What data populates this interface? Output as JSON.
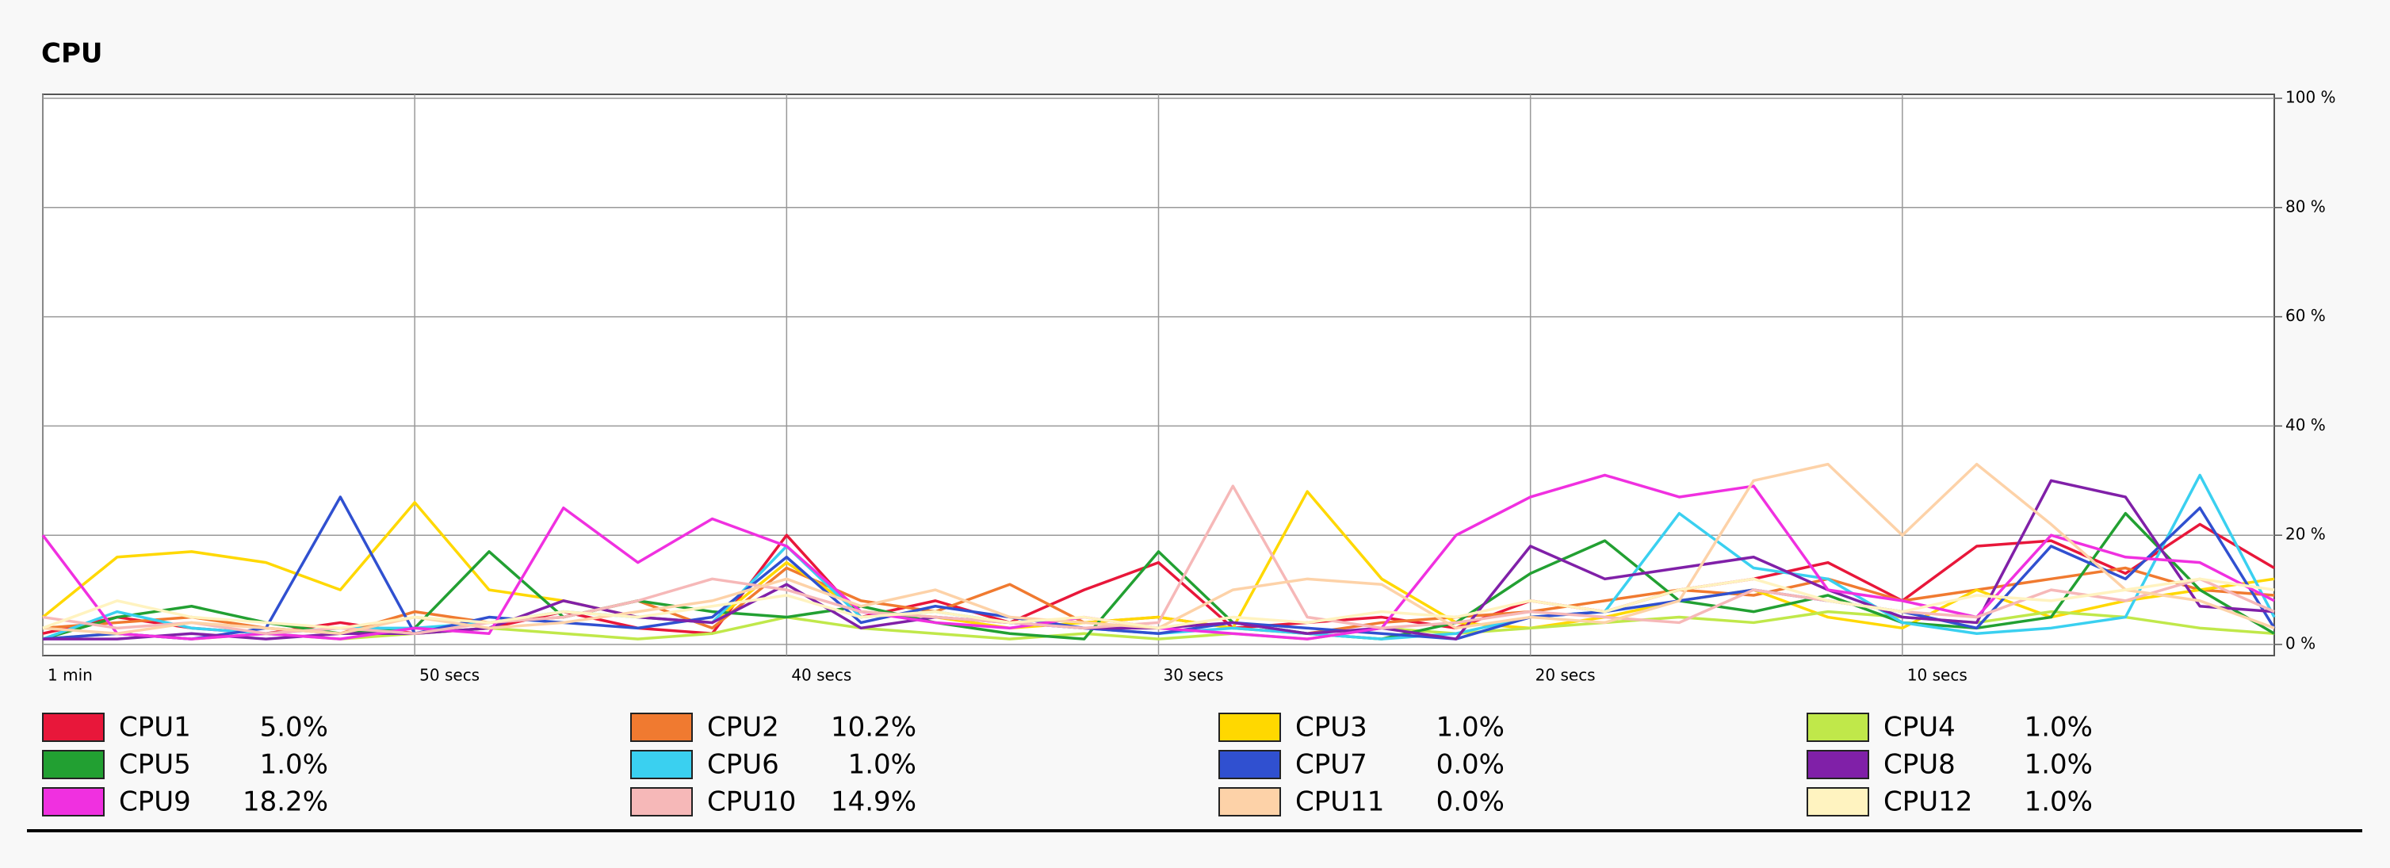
{
  "chart_data": {
    "type": "line",
    "title": "CPU",
    "x": [
      60,
      58,
      56,
      54,
      52,
      50,
      48,
      46,
      44,
      42,
      40,
      38,
      36,
      34,
      32,
      30,
      28,
      26,
      24,
      22,
      20,
      18,
      16,
      14,
      12,
      10,
      8,
      6,
      4,
      2,
      0
    ],
    "xlim": [
      60,
      0
    ],
    "xticks": [
      {
        "value": 60,
        "label": "1 min"
      },
      {
        "value": 50,
        "label": "50 secs"
      },
      {
        "value": 40,
        "label": "40 secs"
      },
      {
        "value": 30,
        "label": "30 secs"
      },
      {
        "value": 20,
        "label": "20 secs"
      },
      {
        "value": 10,
        "label": "10 secs"
      }
    ],
    "ylim": [
      0,
      100
    ],
    "yticks": [
      {
        "value": 100,
        "label": "100 %"
      },
      {
        "value": 80,
        "label": "80 %"
      },
      {
        "value": 60,
        "label": "60 %"
      },
      {
        "value": 40,
        "label": "40 %"
      },
      {
        "value": 20,
        "label": "20 %"
      },
      {
        "value": 0,
        "label": "0 %"
      }
    ],
    "grid": true,
    "series": [
      {
        "name": "CPU1",
        "color": "#e8173a",
        "current": {
          "value": 5.0,
          "label": "5.0%"
        },
        "values": [
          2,
          5,
          3,
          2,
          4,
          2,
          3,
          6,
          3,
          2,
          20,
          5,
          8,
          4,
          10,
          15,
          3,
          4,
          5,
          3,
          8,
          6,
          10,
          12,
          15,
          8,
          18,
          19,
          13,
          22,
          14
        ]
      },
      {
        "name": "CPU2",
        "color": "#f07a30",
        "current": {
          "value": 10.2,
          "label": "10.2%"
        },
        "values": [
          3,
          4,
          5,
          3,
          2,
          6,
          4,
          5,
          8,
          3,
          14,
          8,
          6,
          11,
          4,
          5,
          3,
          2,
          4,
          5,
          6,
          8,
          10,
          9,
          12,
          8,
          10,
          12,
          14,
          10,
          9
        ]
      },
      {
        "name": "CPU3",
        "color": "#ffd800",
        "current": {
          "value": 1.0,
          "label": "1.0%"
        },
        "values": [
          5,
          16,
          17,
          15,
          10,
          26,
          10,
          8,
          5,
          4,
          15,
          6,
          5,
          3,
          4,
          5,
          3,
          28,
          12,
          4,
          3,
          5,
          8,
          10,
          5,
          3,
          10,
          5,
          8,
          10,
          12
        ]
      },
      {
        "name": "CPU4",
        "color": "#c0e84a",
        "current": {
          "value": 1.0,
          "label": "1.0%"
        },
        "values": [
          1,
          2,
          1,
          2,
          1,
          2,
          3,
          2,
          1,
          2,
          5,
          3,
          2,
          1,
          2,
          1,
          2,
          1,
          3,
          2,
          3,
          4,
          5,
          4,
          6,
          5,
          4,
          6,
          5,
          3,
          2
        ]
      },
      {
        "name": "CPU5",
        "color": "#22a032",
        "current": {
          "value": 1.0,
          "label": "1.0%"
        },
        "values": [
          1,
          5,
          7,
          4,
          2,
          3,
          17,
          5,
          8,
          6,
          5,
          7,
          4,
          2,
          1,
          17,
          4,
          2,
          1,
          4,
          13,
          19,
          8,
          6,
          9,
          4,
          3,
          5,
          24,
          10,
          2
        ]
      },
      {
        "name": "CPU6",
        "color": "#3ad0f0",
        "current": {
          "value": 1.0,
          "label": "1.0%"
        },
        "values": [
          1,
          6,
          3,
          2,
          3,
          3,
          4,
          6,
          5,
          4,
          18,
          5,
          6,
          4,
          3,
          2,
          3,
          2,
          1,
          2,
          5,
          6,
          24,
          14,
          12,
          4,
          2,
          3,
          5,
          31,
          5
        ]
      },
      {
        "name": "CPU7",
        "color": "#3050d0",
        "current": {
          "value": 0.0,
          "label": "0.0%"
        },
        "values": [
          1,
          2,
          1,
          3,
          27,
          2,
          5,
          4,
          3,
          5,
          16,
          4,
          7,
          5,
          3,
          2,
          4,
          3,
          2,
          1,
          5,
          6,
          8,
          10,
          8,
          6,
          3,
          18,
          12,
          25,
          3
        ]
      },
      {
        "name": "CPU8",
        "color": "#8020a8",
        "current": {
          "value": 1.0,
          "label": "1.0%"
        },
        "values": [
          1,
          1,
          2,
          1,
          2,
          2,
          3,
          8,
          5,
          4,
          11,
          3,
          5,
          4,
          3,
          3,
          4,
          2,
          3,
          1,
          18,
          12,
          14,
          16,
          10,
          5,
          4,
          30,
          27,
          7,
          6
        ]
      },
      {
        "name": "CPU9",
        "color": "#f030e0",
        "current": {
          "value": 18.2,
          "label": "18.2%"
        },
        "values": [
          20,
          2,
          1,
          2,
          1,
          3,
          2,
          25,
          15,
          23,
          18,
          6,
          4,
          3,
          5,
          3,
          2,
          1,
          3,
          20,
          27,
          31,
          27,
          29,
          10,
          8,
          5,
          20,
          16,
          15,
          8
        ]
      },
      {
        "name": "CPU10",
        "color": "#f6b8b8",
        "current": {
          "value": 14.9,
          "label": "14.9%"
        },
        "values": [
          5,
          3,
          4,
          2,
          3,
          2,
          4,
          5,
          8,
          12,
          10,
          6,
          5,
          4,
          3,
          4,
          29,
          5,
          3,
          4,
          6,
          5,
          4,
          10,
          8,
          6,
          5,
          10,
          8,
          12,
          6
        ]
      },
      {
        "name": "CPU11",
        "color": "#fdd2a8",
        "current": {
          "value": 0.0,
          "label": "0.0%"
        },
        "values": [
          3,
          2,
          4,
          3,
          2,
          5,
          3,
          4,
          6,
          8,
          12,
          7,
          10,
          5,
          4,
          3,
          10,
          12,
          11,
          3,
          5,
          4,
          8,
          30,
          33,
          20,
          33,
          22,
          10,
          8,
          3
        ]
      },
      {
        "name": "CPU12",
        "color": "#fff3c0",
        "current": {
          "value": 1.0,
          "label": "1.0%"
        },
        "values": [
          3,
          8,
          5,
          4,
          3,
          5,
          4,
          6,
          5,
          7,
          9,
          5,
          6,
          4,
          5,
          3,
          5,
          4,
          6,
          5,
          8,
          6,
          10,
          12,
          8,
          6,
          9,
          8,
          10,
          12,
          10
        ]
      }
    ]
  }
}
